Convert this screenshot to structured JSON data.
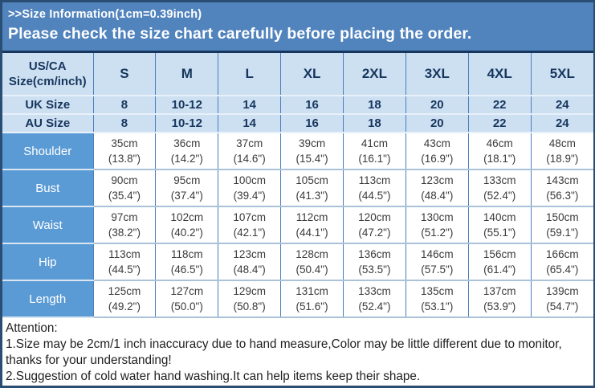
{
  "banner": {
    "line1": ">>Size Information(1cm=0.39inch)",
    "line2": "Please check the size chart carefully before placing the order."
  },
  "table": {
    "header": {
      "label_lines": [
        "US/CA",
        "Size(cm/inch)"
      ],
      "sizes": [
        "S",
        "M",
        "L",
        "XL",
        "2XL",
        "3XL",
        "4XL",
        "5XL"
      ]
    },
    "size_rows": [
      {
        "label": "UK Size",
        "values": [
          "8",
          "10-12",
          "14",
          "16",
          "18",
          "20",
          "22",
          "24"
        ]
      },
      {
        "label": "AU Size",
        "values": [
          "8",
          "10-12",
          "14",
          "16",
          "18",
          "20",
          "22",
          "24"
        ]
      }
    ],
    "measurement_rows": [
      {
        "label": "Shoulder",
        "cm": [
          "35cm",
          "36cm",
          "37cm",
          "39cm",
          "41cm",
          "43cm",
          "46cm",
          "48cm"
        ],
        "inch": [
          "(13.8\")",
          "(14.2\")",
          "(14.6\")",
          "(15.4\")",
          "(16.1\")",
          "(16.9\")",
          "(18.1\")",
          "(18.9\")"
        ]
      },
      {
        "label": "Bust",
        "cm": [
          "90cm",
          "95cm",
          "100cm",
          "105cm",
          "113cm",
          "123cm",
          "133cm",
          "143cm"
        ],
        "inch": [
          "(35.4\")",
          "(37.4\")",
          "(39.4\")",
          "(41.3\")",
          "(44.5\")",
          "(48.4\")",
          "(52.4\")",
          "(56.3\")"
        ]
      },
      {
        "label": "Waist",
        "cm": [
          "97cm",
          "102cm",
          "107cm",
          "112cm",
          "120cm",
          "130cm",
          "140cm",
          "150cm"
        ],
        "inch": [
          "(38.2\")",
          "(40.2\")",
          "(42.1\")",
          "(44.1\")",
          "(47.2\")",
          "(51.2\")",
          "(55.1\")",
          "(59.1\")"
        ]
      },
      {
        "label": "Hip",
        "cm": [
          "113cm",
          "118cm",
          "123cm",
          "128cm",
          "136cm",
          "146cm",
          "156cm",
          "166cm"
        ],
        "inch": [
          "(44.5\")",
          "(46.5\")",
          "(48.4\")",
          "(50.4\")",
          "(53.5\")",
          "(57.5\")",
          "(61.4\")",
          "(65.4\")"
        ]
      },
      {
        "label": "Length",
        "cm": [
          "125cm",
          "127cm",
          "129cm",
          "131cm",
          "133cm",
          "135cm",
          "137cm",
          "139cm"
        ],
        "inch": [
          "(49.2\")",
          "(50.0\")",
          "(50.8\")",
          "(51.6\")",
          "(52.4\")",
          "(53.1\")",
          "(53.9\")",
          "(54.7\")"
        ]
      }
    ]
  },
  "attention": {
    "title": "Attention:",
    "notes": [
      "1.Size may be 2cm/1 inch inaccuracy due to hand measure,Color may be little different due to monitor, thanks for your understanding!",
      "2.Suggestion of cold water hand washing.It can help items keep their shape."
    ]
  },
  "colors": {
    "banner_bg": "#5183BD",
    "border_navy": "#17365D",
    "light_cell_bg": "#CDE0F2",
    "label_cell_bg": "#5B9BD5",
    "header_text": "#17365D",
    "data_text": "#3A3A3A",
    "grid_vertical": "#4A7EBB",
    "grid_horizontal": "#A9C2DA"
  },
  "chart_data": {
    "type": "table",
    "title": ">>Size Information(1cm=0.39inch)",
    "subtitle": "Please check the size chart carefully before placing the order.",
    "columns": [
      "US/CA Size(cm/inch)",
      "S",
      "M",
      "L",
      "XL",
      "2XL",
      "3XL",
      "4XL",
      "5XL"
    ],
    "rows": [
      [
        "UK Size",
        "8",
        "10-12",
        "14",
        "16",
        "18",
        "20",
        "22",
        "24"
      ],
      [
        "AU Size",
        "8",
        "10-12",
        "14",
        "16",
        "18",
        "20",
        "22",
        "24"
      ],
      [
        "Shoulder",
        "35cm (13.8\")",
        "36cm (14.2\")",
        "37cm (14.6\")",
        "39cm (15.4\")",
        "41cm (16.1\")",
        "43cm (16.9\")",
        "46cm (18.1\")",
        "48cm (18.9\")"
      ],
      [
        "Bust",
        "90cm (35.4\")",
        "95cm (37.4\")",
        "100cm (39.4\")",
        "105cm (41.3\")",
        "113cm (44.5\")",
        "123cm (48.4\")",
        "133cm (52.4\")",
        "143cm (56.3\")"
      ],
      [
        "Waist",
        "97cm (38.2\")",
        "102cm (40.2\")",
        "107cm (42.1\")",
        "112cm (44.1\")",
        "120cm (47.2\")",
        "130cm (51.2\")",
        "140cm (55.1\")",
        "150cm (59.1\")"
      ],
      [
        "Hip",
        "113cm (44.5\")",
        "118cm (46.5\")",
        "123cm (48.4\")",
        "128cm (50.4\")",
        "136cm (53.5\")",
        "146cm (57.5\")",
        "156cm (61.4\")",
        "166cm (65.4\")"
      ],
      [
        "Length",
        "125cm (49.2\")",
        "127cm (50.0\")",
        "129cm (50.8\")",
        "131cm (51.6\")",
        "133cm (52.4\")",
        "135cm (53.1\")",
        "137cm (53.9\")",
        "139cm (54.7\")"
      ]
    ],
    "notes": [
      "Attention:",
      "1.Size may be 2cm/1 inch inaccuracy due to hand measure,Color may be little different due to monitor, thanks for your understanding!",
      "2.Suggestion of cold water hand washing.It can help items keep their shape."
    ]
  }
}
